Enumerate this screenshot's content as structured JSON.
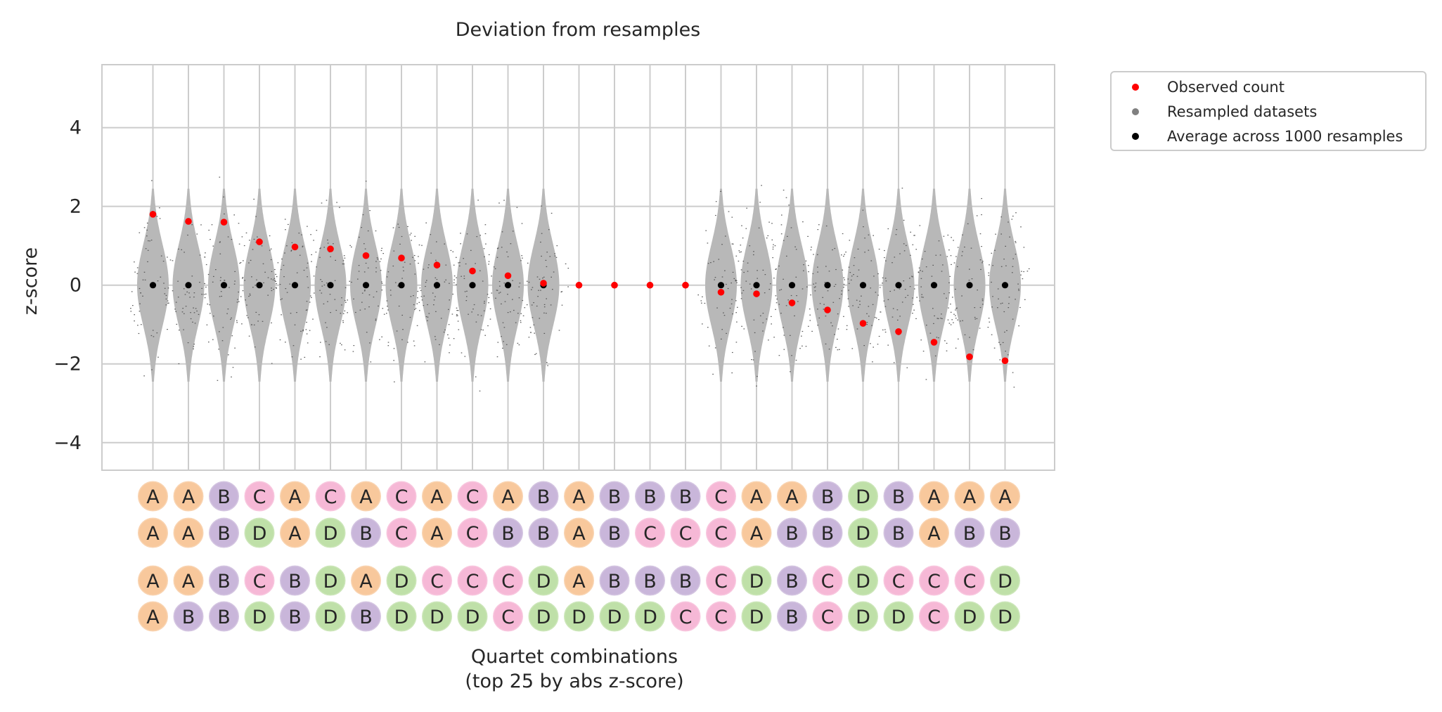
{
  "chart_data": {
    "type": "violin",
    "title": "Deviation from resamples",
    "ylabel": "z-score",
    "xlabel_lines": [
      "Quartet combinations",
      "(top 25 by abs z-score)"
    ],
    "ylim": [
      -4.7,
      5.6
    ],
    "yticks": [
      -4,
      -2,
      0,
      2,
      4
    ],
    "ytick_labels": [
      "−4",
      "−2",
      "0",
      "2",
      "4"
    ],
    "grid": true,
    "legend_position": "outside-top-right",
    "legend": [
      {
        "label": "Observed count",
        "color": "#ff0000"
      },
      {
        "label": "Resampled datasets",
        "color": "#808080"
      },
      {
        "label": "Average across 1000 resamples",
        "color": "#000000"
      }
    ],
    "observed": [
      1.8,
      1.62,
      1.6,
      1.1,
      0.97,
      0.92,
      0.75,
      0.69,
      0.51,
      0.36,
      0.24,
      0.05,
      0.0,
      0.0,
      0.0,
      0.0,
      -0.18,
      -0.22,
      -0.45,
      -0.63,
      -0.97,
      -1.18,
      -1.45,
      -1.82,
      -1.92
    ],
    "average": [
      0,
      0,
      0,
      0,
      0,
      0,
      0,
      0,
      0,
      0,
      0,
      0,
      0,
      0,
      0,
      0,
      0,
      0,
      0,
      0,
      0,
      0,
      0,
      0,
      0
    ],
    "has_violin": [
      true,
      true,
      true,
      true,
      true,
      true,
      true,
      true,
      true,
      true,
      true,
      true,
      false,
      false,
      false,
      false,
      true,
      true,
      true,
      true,
      true,
      true,
      true,
      true,
      true
    ],
    "quartets": [
      [
        "A",
        "A",
        "A",
        "A"
      ],
      [
        "A",
        "A",
        "A",
        "B"
      ],
      [
        "B",
        "B",
        "B",
        "B"
      ],
      [
        "C",
        "D",
        "C",
        "D"
      ],
      [
        "A",
        "A",
        "B",
        "B"
      ],
      [
        "C",
        "D",
        "D",
        "D"
      ],
      [
        "A",
        "B",
        "A",
        "B"
      ],
      [
        "C",
        "C",
        "D",
        "D"
      ],
      [
        "A",
        "A",
        "C",
        "D"
      ],
      [
        "C",
        "C",
        "C",
        "D"
      ],
      [
        "A",
        "B",
        "C",
        "C"
      ],
      [
        "B",
        "B",
        "D",
        "D"
      ],
      [
        "A",
        "A",
        "A",
        "D"
      ],
      [
        "B",
        "B",
        "B",
        "D"
      ],
      [
        "B",
        "C",
        "B",
        "D"
      ],
      [
        "B",
        "C",
        "B",
        "C"
      ],
      [
        "C",
        "C",
        "C",
        "C"
      ],
      [
        "A",
        "A",
        "D",
        "D"
      ],
      [
        "A",
        "B",
        "B",
        "B"
      ],
      [
        "B",
        "B",
        "C",
        "C"
      ],
      [
        "D",
        "D",
        "D",
        "D"
      ],
      [
        "B",
        "B",
        "C",
        "D"
      ],
      [
        "A",
        "A",
        "C",
        "C"
      ],
      [
        "A",
        "B",
        "C",
        "D"
      ],
      [
        "A",
        "B",
        "D",
        "D"
      ]
    ],
    "letter_colors": {
      "A": "#f8c89c",
      "B": "#c9b6da",
      "C": "#f6b8d6",
      "D": "#bfe0a8"
    }
  }
}
